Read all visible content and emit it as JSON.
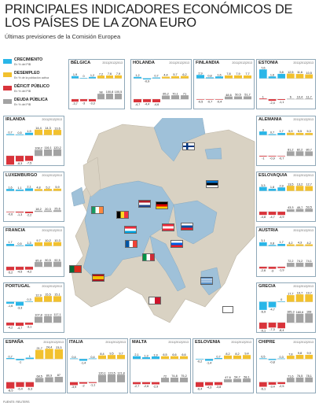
{
  "header": {
    "title": "PRINCIPALES INDICADORES ECONÓMICOS DE LOS PAÍSES DE LA ZONA EURO",
    "subtitle": "Últimas previsiones de la Comisión Europea"
  },
  "legend": [
    {
      "name": "CRECIMIENTO",
      "sub": "En % del PIB",
      "color": "#29b6e8"
    },
    {
      "name": "DESEMPLEO",
      "sub": "En % de la población activa",
      "color": "#f2c12e"
    },
    {
      "name": "DÉFICIT PÚBLICO",
      "sub": "En % del PIB",
      "color": "#d9343b"
    },
    {
      "name": "DEUDA PÚBLICA",
      "sub": "En % del PIB",
      "color": "#a3a3a3"
    }
  ],
  "years_label": "2011|2012|2013",
  "footer": "FUENTE: REUTERS",
  "chart_data": [
    {
      "type": "bar",
      "country": "BÉLGICA",
      "categories": [
        "2011",
        "2012",
        "2013"
      ],
      "series": [
        {
          "name": "CRECIMIENTO",
          "values": [
            1.9,
            0,
            1.2
          ]
        },
        {
          "name": "DESEMPLEO",
          "values": [
            7.2,
            7.6,
            7.9
          ]
        },
        {
          "name": "DÉFICIT PÚBLICO",
          "values": [
            -3.7,
            -3.0,
            -3.3
          ]
        },
        {
          "name": "DEUDA PÚBLICA",
          "values": [
            98.0,
            100.8,
            100.5
          ]
        }
      ]
    },
    {
      "type": "bar",
      "country": "HOLANDA",
      "categories": [
        "2011",
        "2012",
        "2013"
      ],
      "series": [
        {
          "name": "CRECIMIENTO",
          "values": [
            1.2,
            -0.9,
            0.7
          ]
        },
        {
          "name": "DESEMPLEO",
          "values": [
            4.4,
            5.7,
            6.2
          ]
        },
        {
          "name": "DÉFICIT PÚBLICO",
          "values": [
            -4.7,
            -4.4,
            -4.6
          ]
        },
        {
          "name": "DEUDA PÚBLICA",
          "values": [
            65.2,
            70.1,
            71.0
          ]
        }
      ]
    },
    {
      "type": "bar",
      "country": "FINLANDIA",
      "categories": [
        "2011",
        "2012",
        "2013"
      ],
      "series": [
        {
          "name": "CRECIMIENTO",
          "values": [
            2.9,
            0.8,
            1.6
          ]
        },
        {
          "name": "DESEMPLEO",
          "values": [
            7.8,
            7.9,
            7.7
          ]
        },
        {
          "name": "DÉFICIT PÚBLICO",
          "values": [
            -0.5,
            -0.7,
            -0.4
          ]
        },
        {
          "name": "DEUDA PÚBLICA",
          "values": [
            48.6,
            50.5,
            51.7
          ]
        }
      ]
    },
    {
      "type": "bar",
      "country": "ESTONIA",
      "categories": [
        "2011",
        "2012",
        "2013"
      ],
      "series": [
        {
          "name": "CRECIMIENTO",
          "values": [
            7.6,
            1.6,
            3.8
          ]
        },
        {
          "name": "DESEMPLEO",
          "values": [
            12.5,
            11.6,
            10.5
          ]
        },
        {
          "name": "DÉFICIT PÚBLICO",
          "values": [
            1.0,
            -2.4,
            -1.1
          ]
        },
        {
          "name": "DEUDA PÚBLICA",
          "values": [
            6.0,
            10.4,
            11.7
          ]
        }
      ]
    },
    {
      "type": "bar",
      "country": "IRLANDA",
      "categories": [
        "2011",
        "2012",
        "2013"
      ],
      "series": [
        {
          "name": "CRECIMIENTO",
          "values": [
            0.7,
            0.5,
            1.9
          ]
        },
        {
          "name": "DESEMPLEO",
          "values": [
            14.4,
            14.3,
            13.6
          ]
        },
        {
          "name": "DÉFICIT PÚBLICO",
          "values": [
            -13.1,
            -8.3,
            -7.5
          ]
        },
        {
          "name": "DEUDA PÚBLICA",
          "values": [
            108.2,
            116.1,
            120.2
          ]
        }
      ]
    },
    {
      "type": "bar",
      "country": "ALEMANIA",
      "categories": [
        "2011",
        "2012",
        "2013"
      ],
      "series": [
        {
          "name": "CRECIMIENTO",
          "values": [
            3.0,
            0.7,
            1.7
          ]
        },
        {
          "name": "DESEMPLEO",
          "values": [
            5.9,
            5.5,
            5.3
          ]
        },
        {
          "name": "DÉFICIT PÚBLICO",
          "values": [
            -1.0,
            -0.9,
            -0.7
          ]
        },
        {
          "name": "DEUDA PÚBLICA",
          "values": [
            81.2,
            82.2,
            80.7
          ]
        }
      ]
    },
    {
      "type": "bar",
      "country": "LUXEMBURGO",
      "categories": [
        "2011",
        "2012",
        "2013"
      ],
      "series": [
        {
          "name": "CRECIMIENTO",
          "values": [
            1.6,
            1.1,
            2.1
          ]
        },
        {
          "name": "DESEMPLEO",
          "values": [
            4.8,
            5.2,
            5.9
          ]
        },
        {
          "name": "DÉFICIT PÚBLICO",
          "values": [
            -0.6,
            -1.3,
            -2.2
          ]
        },
        {
          "name": "DEUDA PÚBLICA",
          "values": [
            18.2,
            20.3,
            25.6
          ]
        }
      ]
    },
    {
      "type": "bar",
      "country": "ESLOVAQUIA",
      "categories": [
        "2011",
        "2012",
        "2013"
      ],
      "series": [
        {
          "name": "CRECIMIENTO",
          "values": [
            3.3,
            1.8,
            2.9
          ]
        },
        {
          "name": "DESEMPLEO",
          "values": [
            13.5,
            13.2,
            12.7
          ]
        },
        {
          "name": "DÉFICIT PÚBLICO",
          "values": [
            -4.8,
            -4.7,
            -4.9
          ]
        },
        {
          "name": "DEUDA PÚBLICA",
          "values": [
            43.3,
            49.7,
            53.5
          ]
        }
      ]
    },
    {
      "type": "bar",
      "country": "FRANCIA",
      "categories": [
        "2011",
        "2012",
        "2013"
      ],
      "series": [
        {
          "name": "CRECIMIENTO",
          "values": [
            1.7,
            0.5,
            1.3
          ]
        },
        {
          "name": "DESEMPLEO",
          "values": [
            9.7,
            10.2,
            10.3
          ]
        },
        {
          "name": "DÉFICIT PÚBLICO",
          "values": [
            -5.2,
            -4.5,
            -4.2
          ]
        },
        {
          "name": "DEUDA PÚBLICA",
          "values": [
            85.8,
            90.5,
            92.5
          ]
        }
      ]
    },
    {
      "type": "bar",
      "country": "AUSTRIA",
      "categories": [
        "2011",
        "2012",
        "2013"
      ],
      "series": [
        {
          "name": "CRECIMIENTO",
          "values": [
            3.1,
            0.8,
            1.7
          ]
        },
        {
          "name": "DESEMPLEO",
          "values": [
            4.2,
            4.3,
            4.2
          ]
        },
        {
          "name": "DÉFICIT PÚBLICO",
          "values": [
            -2.6,
            -3.0,
            -1.9
          ]
        },
        {
          "name": "DEUDA PÚBLICA",
          "values": [
            72.2,
            74.2,
            74.1
          ]
        }
      ]
    },
    {
      "type": "bar",
      "country": "PORTUGAL",
      "categories": [
        "2011",
        "2012",
        "2013"
      ],
      "series": [
        {
          "name": "CRECIMIENTO",
          "values": [
            -1.6,
            -3.3,
            0.3
          ]
        },
        {
          "name": "DESEMPLEO",
          "values": [
            12.9,
            15.5,
            15.1
          ]
        },
        {
          "name": "DÉFICIT PÚBLICO",
          "values": [
            -4.2,
            -4.7,
            -3.1
          ]
        },
        {
          "name": "DEUDA PÚBLICA",
          "values": [
            107.8,
            113.9,
            117.1
          ]
        }
      ]
    },
    {
      "type": "bar",
      "country": "GRECIA",
      "categories": [
        "2011",
        "2012",
        "2013"
      ],
      "series": [
        {
          "name": "CRECIMIENTO",
          "values": [
            -6.9,
            -4.7,
            0
          ]
        },
        {
          "name": "DESEMPLEO",
          "values": [
            17.7,
            19.7,
            19.7
          ]
        },
        {
          "name": "DÉFICIT PÚBLICO",
          "values": [
            -9.1,
            -7.3,
            -8.4
          ]
        },
        {
          "name": "DEUDA PÚBLICA",
          "values": [
            165.3,
            160.6,
            168.0
          ]
        }
      ]
    },
    {
      "type": "bar",
      "country": "ESPAÑA",
      "categories": [
        "2011",
        "2012",
        "2013"
      ],
      "series": [
        {
          "name": "CRECIMIENTO",
          "values": [
            0.7,
            -1.0,
            1.0
          ]
        },
        {
          "name": "DESEMPLEO",
          "values": [
            21.7,
            24.4,
            23.3
          ]
        },
        {
          "name": "DÉFICIT PÚBLICO",
          "values": [
            -8.5,
            -6.4,
            -6.3
          ]
        },
        {
          "name": "DEUDA PÚBLICA",
          "values": [
            68.5,
            80.9,
            87.0
          ]
        }
      ]
    },
    {
      "type": "bar",
      "country": "ITALIA",
      "categories": [
        "2011",
        "2012",
        "2013"
      ],
      "series": [
        {
          "name": "CRECIMIENTO",
          "values": [
            0.4,
            -1.4,
            0.4
          ]
        },
        {
          "name": "DESEMPLEO",
          "values": [
            8.4,
            9.5,
            9.7
          ]
        },
        {
          "name": "DÉFICIT PÚBLICO",
          "values": [
            -3.9,
            -2.0,
            -1.1
          ]
        },
        {
          "name": "DEUDA PÚBLICA",
          "values": [
            120.1,
            123.5,
            121.8
          ]
        }
      ]
    },
    {
      "type": "bar",
      "country": "MALTA",
      "categories": [
        "2011",
        "2012",
        "2013"
      ],
      "series": [
        {
          "name": "CRECIMIENTO",
          "values": [
            2.1,
            1.3,
            1.9
          ]
        },
        {
          "name": "DESEMPLEO",
          "values": [
            6.5,
            6.6,
            6.6
          ]
        },
        {
          "name": "DÉFICIT PÚBLICO",
          "values": [
            -2.7,
            -2.6,
            -2.9
          ]
        },
        {
          "name": "DEUDA PÚBLICA",
          "values": [
            72.0,
            74.8,
            75.2
          ]
        }
      ]
    },
    {
      "type": "bar",
      "country": "ESLOVENIA",
      "categories": [
        "2011",
        "2012",
        "2013"
      ],
      "series": [
        {
          "name": "CRECIMIENTO",
          "values": [
            -0.2,
            -1.4,
            0.7
          ]
        },
        {
          "name": "DESEMPLEO",
          "values": [
            8.2,
            8.2,
            9.4
          ]
        },
        {
          "name": "DÉFICIT PÚBLICO",
          "values": [
            -6.4,
            -4.3,
            -3.8
          ]
        },
        {
          "name": "DEUDA PÚBLICA",
          "values": [
            47.6,
            54.7,
            58.1
          ]
        }
      ]
    },
    {
      "type": "bar",
      "country": "CHIPRE",
      "categories": [
        "2011",
        "2012",
        "2013"
      ],
      "series": [
        {
          "name": "CRECIMIENTO",
          "values": [
            0.5,
            -0.8,
            0.3
          ]
        },
        {
          "name": "DESEMPLEO",
          "values": [
            7.8,
            9.8,
            9.9
          ]
        },
        {
          "name": "DÉFICIT PÚBLICO",
          "values": [
            -6.1,
            -3.4,
            -2.5
          ]
        },
        {
          "name": "DEUDA PÚBLICA",
          "values": [
            71.6,
            76.5,
            78.1
          ]
        }
      ]
    }
  ]
}
